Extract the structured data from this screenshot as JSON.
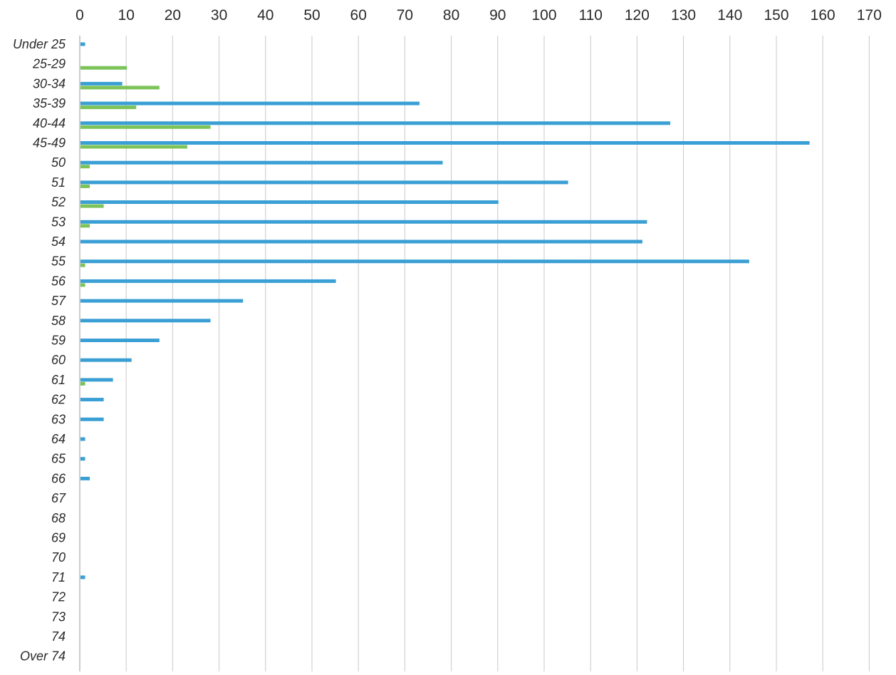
{
  "chart_data": {
    "type": "bar",
    "orientation": "horizontal",
    "title": "",
    "xlabel": "",
    "ylabel": "",
    "xlim": [
      0,
      170
    ],
    "x_ticks": [
      0,
      10,
      20,
      30,
      40,
      50,
      60,
      70,
      80,
      90,
      100,
      110,
      120,
      130,
      140,
      150,
      160,
      170
    ],
    "x_axis_position": "top",
    "grid": true,
    "legend": "none",
    "categories": [
      "Under 25",
      "25-29",
      "30-34",
      "35-39",
      "40-44",
      "45-49",
      "50",
      "51",
      "52",
      "53",
      "54",
      "55",
      "56",
      "57",
      "58",
      "59",
      "60",
      "61",
      "62",
      "63",
      "64",
      "65",
      "66",
      "67",
      "68",
      "69",
      "70",
      "71",
      "72",
      "73",
      "74",
      "Over 74"
    ],
    "series": [
      {
        "color": "#3a9fd4",
        "values": [
          1,
          0,
          9,
          73,
          127,
          157,
          78,
          105,
          90,
          122,
          121,
          144,
          55,
          35,
          28,
          17,
          11,
          7,
          5,
          5,
          1,
          1,
          2,
          0,
          0,
          0,
          0,
          1,
          0,
          0,
          0,
          0
        ]
      },
      {
        "color": "#7cc45a",
        "values": [
          0,
          10,
          17,
          12,
          28,
          23,
          2,
          2,
          5,
          2,
          0,
          1,
          1,
          0,
          0,
          0,
          0,
          1,
          0,
          0,
          0,
          0,
          0,
          0,
          0,
          0,
          0,
          0,
          0,
          0,
          0,
          0
        ]
      }
    ]
  }
}
